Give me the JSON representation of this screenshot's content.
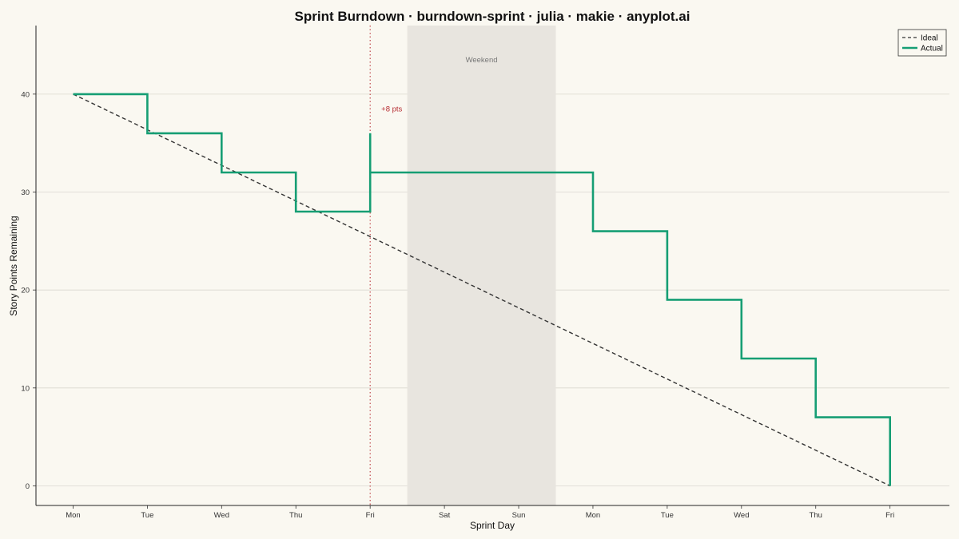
{
  "chart_data": {
    "type": "line",
    "title": "Sprint Burndown · burndown-sprint · julia · makie · anyplot.ai",
    "xlabel": "Sprint Day",
    "ylabel": "Story Points Remaining",
    "categories": [
      "Mon",
      "Tue",
      "Wed",
      "Thu",
      "Fri",
      "Sat",
      "Sun",
      "Mon",
      "Tue",
      "Wed",
      "Thu",
      "Fri"
    ],
    "xlim": [
      -0.5,
      11.8
    ],
    "ylim": [
      -2,
      47
    ],
    "yticks": [
      0,
      10,
      20,
      30,
      40
    ],
    "grid": true,
    "legend_position": "top-right",
    "series": [
      {
        "name": "Ideal",
        "style": "dashed",
        "color": "#333333",
        "points": [
          [
            0,
            40
          ],
          [
            11,
            0
          ]
        ]
      },
      {
        "name": "Actual",
        "style": "step",
        "color": "#169E74",
        "points": [
          [
            0,
            40
          ],
          [
            1,
            40
          ],
          [
            1,
            36
          ],
          [
            2,
            36
          ],
          [
            2,
            32
          ],
          [
            3,
            32
          ],
          [
            3,
            28
          ],
          [
            4,
            28
          ],
          [
            4,
            36
          ],
          [
            4,
            32
          ],
          [
            7,
            32
          ],
          [
            7,
            26
          ],
          [
            8,
            26
          ],
          [
            8,
            19
          ],
          [
            9,
            19
          ],
          [
            9,
            13
          ],
          [
            10,
            13
          ],
          [
            10,
            7
          ],
          [
            11,
            7
          ],
          [
            11,
            0
          ]
        ]
      }
    ],
    "shaded_regions": [
      {
        "label": "Weekend",
        "x_range": [
          4.5,
          6.5
        ],
        "color": "#E8E5DF"
      }
    ],
    "annotations": [
      {
        "text": "+8 pts",
        "x": 4,
        "y": 38.5,
        "vline_x": 4,
        "color": "#B5282E"
      }
    ]
  }
}
